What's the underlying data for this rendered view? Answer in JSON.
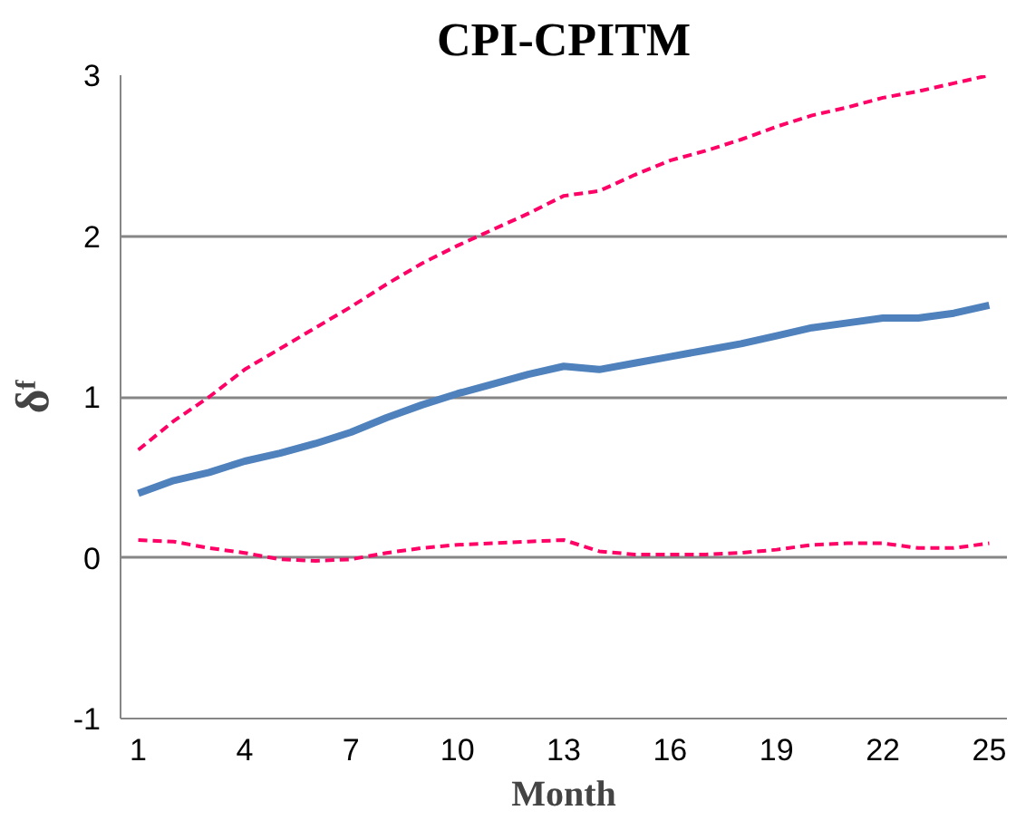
{
  "chart_data": {
    "type": "line",
    "title": "CPI-CPITM",
    "xlabel": "Month",
    "ylabel": "δᶠ",
    "categories": [
      "1",
      null,
      null,
      "4",
      null,
      null,
      "7",
      null,
      null,
      "10",
      null,
      null,
      "13",
      null,
      null,
      "16",
      null,
      null,
      "19",
      null,
      null,
      "22",
      null,
      null,
      "25"
    ],
    "series": [
      {
        "color": "#4f81bd",
        "line_style": "solid",
        "values": [
          0.4,
          0.48,
          0.53,
          0.6,
          0.65,
          0.71,
          0.78,
          0.87,
          0.95,
          1.02,
          1.08,
          1.14,
          1.19,
          1.17,
          1.21,
          1.25,
          1.29,
          1.33,
          1.38,
          1.43,
          1.46,
          1.49,
          1.49,
          1.52,
          1.57
        ]
      },
      {
        "color": "#ff0066",
        "line_style": "dashed",
        "values": [
          0.67,
          0.85,
          1.0,
          1.17,
          1.3,
          1.43,
          1.56,
          1.7,
          1.83,
          1.94,
          2.04,
          2.14,
          2.25,
          2.28,
          2.38,
          2.47,
          2.53,
          2.6,
          2.68,
          2.75,
          2.8,
          2.86,
          2.9,
          2.95,
          3.0
        ]
      },
      {
        "color": "#ff0066",
        "line_style": "dashed",
        "values": [
          0.11,
          0.1,
          0.06,
          0.03,
          -0.01,
          -0.02,
          -0.01,
          0.03,
          0.06,
          0.08,
          0.09,
          0.1,
          0.11,
          0.04,
          0.02,
          0.02,
          0.02,
          0.03,
          0.05,
          0.08,
          0.09,
          0.09,
          0.06,
          0.06,
          0.09
        ]
      }
    ],
    "ylim": [
      -1,
      3
    ],
    "yticks": [
      -1,
      0,
      1,
      2,
      3
    ],
    "grid": "y"
  }
}
